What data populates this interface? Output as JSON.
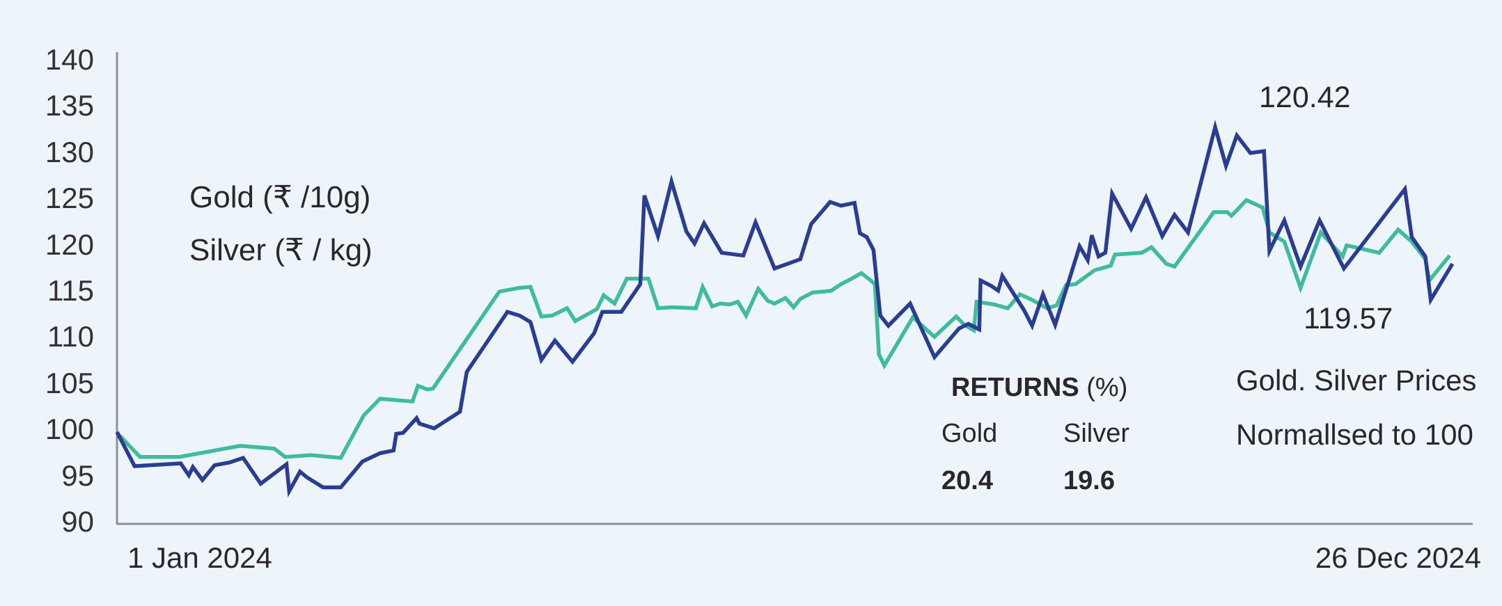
{
  "legend": {
    "gold": "Gold  (₹ /10g)",
    "silver": "Silver (₹ / kg)"
  },
  "annotations": {
    "gold_end_value": "120.42",
    "silver_end_value": "119.57",
    "note_line1": "Gold. Silver Prices",
    "note_line2": "Normallsed to 100"
  },
  "returns": {
    "heading_bold": "RETURNS",
    "heading_unit": "(%)",
    "columns": [
      {
        "label": "Gold",
        "value": "20.4"
      },
      {
        "label": "Silver",
        "value": "19.6"
      }
    ]
  },
  "x_axis": {
    "start_label": "1 Jan 2024",
    "end_label": "26 Dec 2024"
  },
  "colors": {
    "gold_line": "#2a3d94",
    "silver_line": "#3fbc9e",
    "background": "#edf4fa",
    "axis": "#8d9096",
    "text": "#2a272a"
  },
  "chart_data": {
    "type": "line",
    "title": "Gold. Silver Prices Normallsed to 100",
    "xlabel": "",
    "ylabel": "",
    "x_range_labels": [
      "1 Jan 2024",
      "26 Dec 2024"
    ],
    "ylim": [
      90,
      140
    ],
    "yticks": [
      140,
      135,
      130,
      125,
      120,
      115,
      110,
      105,
      100,
      95,
      90
    ],
    "grid": false,
    "legend_position": "top-left-text",
    "series": [
      {
        "name": "Gold (₹/10g)",
        "color": "#2a3d94",
        "return_pct": 20.4,
        "end_value_label": 120.42,
        "points": [
          [
            0.0,
            99.8
          ],
          [
            0.013,
            96.1
          ],
          [
            0.047,
            96.4
          ],
          [
            0.053,
            95.1
          ],
          [
            0.056,
            96.0
          ],
          [
            0.063,
            94.6
          ],
          [
            0.072,
            96.2
          ],
          [
            0.083,
            96.5
          ],
          [
            0.093,
            97.0
          ],
          [
            0.106,
            94.2
          ],
          [
            0.125,
            96.3
          ],
          [
            0.127,
            93.4
          ],
          [
            0.135,
            95.5
          ],
          [
            0.14,
            94.9
          ],
          [
            0.152,
            93.8
          ],
          [
            0.165,
            93.8
          ],
          [
            0.181,
            96.6
          ],
          [
            0.194,
            97.5
          ],
          [
            0.204,
            97.8
          ],
          [
            0.206,
            99.6
          ],
          [
            0.211,
            99.7
          ],
          [
            0.221,
            101.3
          ],
          [
            0.223,
            100.7
          ],
          [
            0.234,
            100.2
          ],
          [
            0.253,
            102.0
          ],
          [
            0.258,
            106.3
          ],
          [
            0.288,
            112.8
          ],
          [
            0.297,
            112.4
          ],
          [
            0.305,
            111.7
          ],
          [
            0.313,
            107.6
          ],
          [
            0.323,
            109.7
          ],
          [
            0.336,
            107.4
          ],
          [
            0.352,
            110.5
          ],
          [
            0.358,
            112.8
          ],
          [
            0.372,
            112.8
          ],
          [
            0.386,
            115.8
          ],
          [
            0.389,
            125.4
          ],
          [
            0.399,
            121.0
          ],
          [
            0.409,
            126.9
          ],
          [
            0.42,
            121.5
          ],
          [
            0.426,
            120.2
          ],
          [
            0.433,
            122.4
          ],
          [
            0.446,
            119.2
          ],
          [
            0.462,
            118.9
          ],
          [
            0.471,
            122.5
          ],
          [
            0.485,
            117.5
          ],
          [
            0.504,
            118.5
          ],
          [
            0.512,
            122.3
          ],
          [
            0.526,
            124.7
          ],
          [
            0.534,
            124.3
          ],
          [
            0.544,
            124.6
          ],
          [
            0.548,
            121.3
          ],
          [
            0.553,
            120.9
          ],
          [
            0.558,
            119.5
          ],
          [
            0.563,
            112.4
          ],
          [
            0.569,
            111.3
          ],
          [
            0.585,
            113.7
          ],
          [
            0.603,
            107.9
          ],
          [
            0.621,
            111.0
          ],
          [
            0.628,
            111.5
          ],
          [
            0.636,
            110.9
          ],
          [
            0.637,
            116.2
          ],
          [
            0.645,
            115.6
          ],
          [
            0.65,
            115.1
          ],
          [
            0.653,
            116.7
          ],
          [
            0.669,
            113.0
          ],
          [
            0.675,
            111.3
          ],
          [
            0.683,
            114.7
          ],
          [
            0.692,
            111.4
          ],
          [
            0.71,
            119.9
          ],
          [
            0.716,
            118.4
          ],
          [
            0.719,
            121.1
          ],
          [
            0.724,
            118.8
          ],
          [
            0.729,
            119.2
          ],
          [
            0.734,
            125.6
          ],
          [
            0.748,
            121.8
          ],
          [
            0.759,
            125.2
          ],
          [
            0.771,
            121.0
          ],
          [
            0.78,
            123.3
          ],
          [
            0.79,
            121.4
          ],
          [
            0.81,
            132.8
          ],
          [
            0.818,
            128.6
          ],
          [
            0.826,
            131.9
          ],
          [
            0.836,
            130.0
          ],
          [
            0.846,
            130.2
          ],
          [
            0.85,
            119.4
          ],
          [
            0.861,
            122.7
          ],
          [
            0.873,
            117.7
          ],
          [
            0.887,
            122.7
          ],
          [
            0.905,
            117.5
          ],
          [
            0.95,
            126.1
          ],
          [
            0.955,
            120.9
          ],
          [
            0.965,
            118.8
          ],
          [
            0.969,
            114.1
          ],
          [
            0.985,
            118.0
          ]
        ]
      },
      {
        "name": "Silver (₹/kg)",
        "color": "#3fbc9e",
        "return_pct": 19.6,
        "end_value_label": 119.57,
        "points": [
          [
            0.002,
            99.4
          ],
          [
            0.017,
            97.1
          ],
          [
            0.046,
            97.1
          ],
          [
            0.091,
            98.3
          ],
          [
            0.116,
            98.0
          ],
          [
            0.124,
            97.1
          ],
          [
            0.143,
            97.3
          ],
          [
            0.165,
            97.0
          ],
          [
            0.182,
            101.6
          ],
          [
            0.194,
            103.4
          ],
          [
            0.218,
            103.1
          ],
          [
            0.222,
            104.8
          ],
          [
            0.229,
            104.4
          ],
          [
            0.233,
            104.5
          ],
          [
            0.282,
            115.0
          ],
          [
            0.297,
            115.4
          ],
          [
            0.305,
            115.5
          ],
          [
            0.313,
            112.3
          ],
          [
            0.321,
            112.4
          ],
          [
            0.332,
            113.2
          ],
          [
            0.338,
            111.8
          ],
          [
            0.354,
            113.1
          ],
          [
            0.359,
            114.6
          ],
          [
            0.367,
            113.7
          ],
          [
            0.376,
            116.4
          ],
          [
            0.392,
            116.4
          ],
          [
            0.399,
            113.2
          ],
          [
            0.409,
            113.3
          ],
          [
            0.427,
            113.2
          ],
          [
            0.432,
            115.5
          ],
          [
            0.439,
            113.4
          ],
          [
            0.445,
            113.7
          ],
          [
            0.452,
            113.6
          ],
          [
            0.458,
            113.9
          ],
          [
            0.464,
            112.4
          ],
          [
            0.473,
            115.3
          ],
          [
            0.48,
            114.0
          ],
          [
            0.485,
            113.7
          ],
          [
            0.493,
            114.3
          ],
          [
            0.499,
            113.3
          ],
          [
            0.504,
            114.2
          ],
          [
            0.513,
            114.9
          ],
          [
            0.521,
            115.0
          ],
          [
            0.527,
            115.1
          ],
          [
            0.534,
            115.8
          ],
          [
            0.542,
            116.4
          ],
          [
            0.549,
            117.0
          ],
          [
            0.556,
            116.2
          ],
          [
            0.559,
            115.8
          ],
          [
            0.562,
            108.2
          ],
          [
            0.566,
            107.0
          ],
          [
            0.587,
            112.2
          ],
          [
            0.603,
            110.1
          ],
          [
            0.619,
            112.3
          ],
          [
            0.625,
            111.4
          ],
          [
            0.632,
            110.8
          ],
          [
            0.634,
            113.9
          ],
          [
            0.647,
            113.6
          ],
          [
            0.657,
            113.2
          ],
          [
            0.666,
            114.7
          ],
          [
            0.675,
            114.1
          ],
          [
            0.686,
            113.2
          ],
          [
            0.693,
            113.5
          ],
          [
            0.7,
            115.7
          ],
          [
            0.707,
            115.8
          ],
          [
            0.721,
            117.3
          ],
          [
            0.733,
            117.8
          ],
          [
            0.736,
            119.0
          ],
          [
            0.756,
            119.2
          ],
          [
            0.763,
            119.8
          ],
          [
            0.774,
            118.0
          ],
          [
            0.78,
            117.7
          ],
          [
            0.809,
            123.6
          ],
          [
            0.819,
            123.6
          ],
          [
            0.822,
            123.2
          ],
          [
            0.833,
            124.9
          ],
          [
            0.845,
            124.1
          ],
          [
            0.85,
            121.4
          ],
          [
            0.861,
            120.4
          ],
          [
            0.873,
            115.4
          ],
          [
            0.888,
            121.4
          ],
          [
            0.904,
            118.8
          ],
          [
            0.907,
            120.0
          ],
          [
            0.931,
            119.2
          ],
          [
            0.945,
            121.7
          ],
          [
            0.955,
            120.4
          ],
          [
            0.965,
            118.5
          ],
          [
            0.968,
            116.2
          ],
          [
            0.983,
            118.9
          ]
        ]
      }
    ]
  }
}
